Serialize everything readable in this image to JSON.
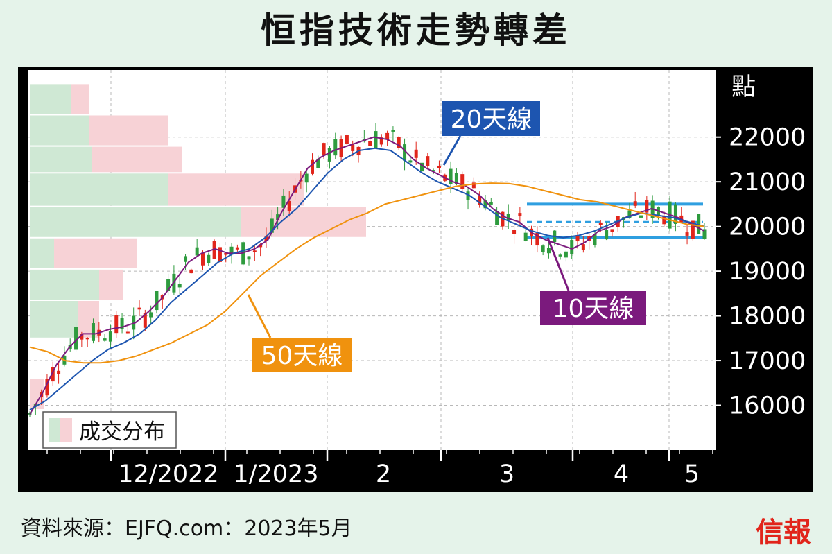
{
  "title": "恒指技術走勢轉差",
  "source": "資料來源：EJFQ.com：2023年5月",
  "brand": "信報",
  "colors": {
    "background": "#e5f3ea",
    "panel": "#000000",
    "plot": "#ffffff",
    "up": "#2e9b3e",
    "down": "#e1251b",
    "ma10": "#7b1a7d",
    "ma20": "#1d55b0",
    "ma50": "#f0920e",
    "channel": "#2f9fe0",
    "vol_buy": "#cfe8d4",
    "vol_sell": "#f7d2d6"
  },
  "chart_data": {
    "type": "candlestick",
    "title": "恒指技術走勢轉差",
    "y_unit_label": "點",
    "ylim": [
      15000,
      23500
    ],
    "yticks": [
      16000,
      17000,
      18000,
      19000,
      20000,
      21000,
      22000
    ],
    "x_tick_labels": [
      "12/2022",
      "1/2023",
      "2",
      "3",
      "4",
      "5"
    ],
    "series": [
      {
        "name": "10天線",
        "values": [
          15800,
          16300,
          16900,
          17300,
          17600,
          17600,
          17700,
          17750,
          17850,
          18100,
          18400,
          18800,
          19200,
          19400,
          19500,
          19400,
          19400,
          19500,
          19700,
          20300,
          20800,
          21300,
          21550,
          21700,
          21800,
          21900,
          22000,
          21950,
          21800,
          21500,
          21300,
          21150,
          21000,
          20900,
          20700,
          20400,
          20200,
          20100,
          19850,
          19700,
          19600,
          19500,
          19650,
          19900,
          20000,
          20200,
          20300,
          20400,
          20300,
          20200,
          20050,
          19900
        ]
      },
      {
        "name": "20天線",
        "values": [
          15900,
          16100,
          16400,
          16700,
          17000,
          17250,
          17400,
          17600,
          17900,
          18300,
          18600,
          18900,
          19200,
          19400,
          19500,
          19750,
          20100,
          20400,
          20800,
          21200,
          21500,
          21700,
          21750,
          21700,
          21450,
          21200,
          21000,
          20850,
          20700,
          20450,
          20200,
          20050,
          19900,
          19800,
          19750,
          19800,
          19900,
          20050,
          20200,
          20300,
          20250,
          20200,
          20100,
          20000
        ]
      },
      {
        "name": "50天線",
        "values": [
          17300,
          17200,
          17000,
          16950,
          16950,
          17000,
          17100,
          17250,
          17400,
          17600,
          17800,
          18100,
          18500,
          18900,
          19200,
          19500,
          19750,
          19950,
          20150,
          20300,
          20500,
          20600,
          20700,
          20800,
          20900,
          20950,
          20970,
          20960,
          20900,
          20800,
          20700,
          20600,
          20550,
          20450,
          20350,
          20250,
          20150,
          20050,
          20000
        ]
      }
    ],
    "support_band": [
      19750,
      20500
    ],
    "midline": 20100,
    "volume_profile": [
      {
        "low": 22500,
        "high": 23200,
        "buy": 60,
        "sell": 25
      },
      {
        "low": 21800,
        "high": 22500,
        "buy": 85,
        "sell": 115
      },
      {
        "low": 21200,
        "high": 21800,
        "buy": 90,
        "sell": 130
      },
      {
        "low": 20450,
        "high": 21200,
        "buy": 200,
        "sell": 195
      },
      {
        "low": 19750,
        "high": 20450,
        "buy": 305,
        "sell": 180
      },
      {
        "low": 19050,
        "high": 19750,
        "buy": 35,
        "sell": 120
      },
      {
        "low": 18350,
        "high": 19050,
        "buy": 100,
        "sell": 35
      },
      {
        "low": 17500,
        "high": 18350,
        "buy": 70,
        "sell": 30
      },
      {
        "low": 15900,
        "high": 16600,
        "buy": 0,
        "sell": 20
      }
    ],
    "legend": {
      "volume": "成交分布"
    },
    "annotations": [
      "20天線",
      "10天線",
      "50天線"
    ]
  }
}
